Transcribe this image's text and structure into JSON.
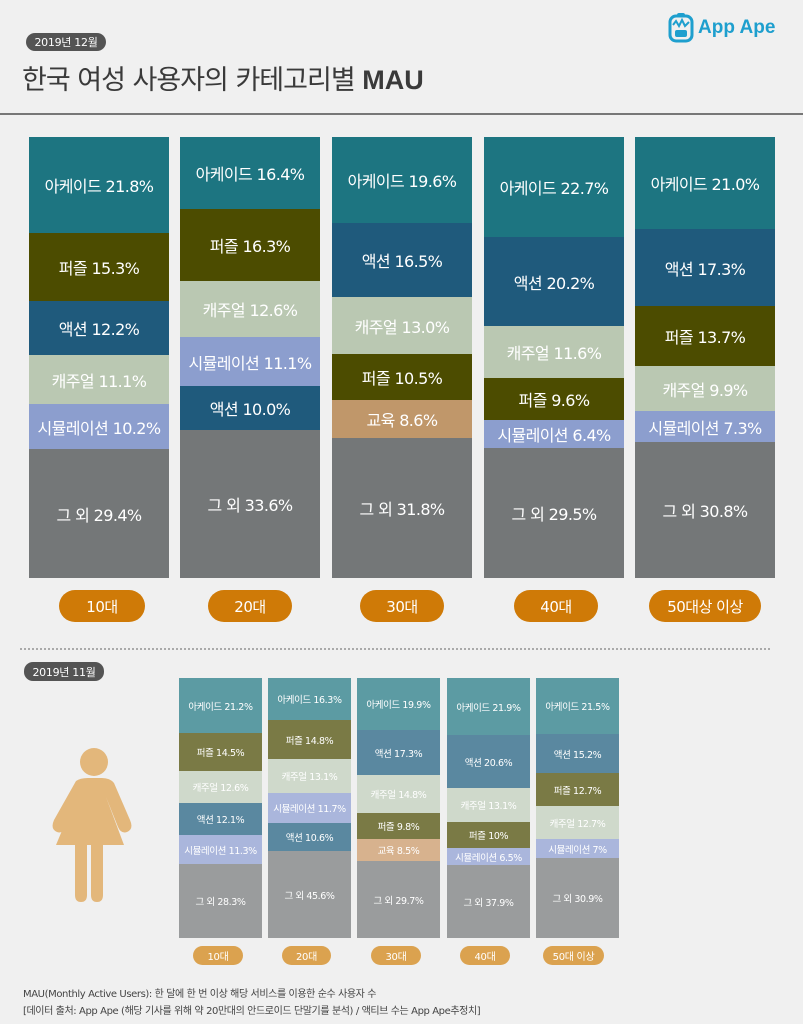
{
  "header": {
    "date_label": "2019년 12월",
    "title_korean": "한국 여성 사용자의 카테고리별",
    "title_metric": "MAU",
    "logo_text": "App Ape"
  },
  "colors": {
    "arcade": "#1d7581",
    "puzzle": "#4c4c00",
    "action": "#1f5a7c",
    "casual": "#bac8b2",
    "simulation": "#8c9ece",
    "education": "#c0976a",
    "other": "#747778",
    "arcade_light": "#5c9ba3",
    "puzzle_light": "#7a7a45",
    "action_light": "#5a88a0",
    "casual_light": "#cfd9cb",
    "simulation_light": "#aab6dc",
    "education_light": "#d7b28e",
    "other_light": "#9a9c9d",
    "age_pill": "#cf7a07",
    "age_pill_light": "#dba24f",
    "figure": "#e3b77b"
  },
  "section2": {
    "date_label": "2019년 11월"
  },
  "footer": {
    "line1": "MAU(Monthly Active Users):  한 달에 한 번 이상 해당 서비스를 이용한 순수 사용자 수",
    "line2": "[데이터 출처: App Ape (해당 기사를 위해 약 20만대의 안드로이드 단말기를 분석) / 액티브 수는 App Ape추정치]"
  },
  "chart_data": [
    {
      "type": "bar",
      "stacked": true,
      "title": "한국 여성 사용자의 카테고리별 MAU (2019년 12월)",
      "categories": [
        "10대",
        "20대",
        "30대",
        "40대",
        "50대상 이상"
      ],
      "bars": [
        {
          "age": "10대",
          "segments": [
            {
              "label": "아케이드 21.8%",
              "category": "arcade",
              "value": 21.8
            },
            {
              "label": "퍼즐 15.3%",
              "category": "puzzle",
              "value": 15.3
            },
            {
              "label": "액션 12.2%",
              "category": "action",
              "value": 12.2
            },
            {
              "label": "캐주얼 11.1%",
              "category": "casual",
              "value": 11.1
            },
            {
              "label": "시뮬레이션 10.2%",
              "category": "simulation",
              "value": 10.2
            },
            {
              "label": "그 외 29.4%",
              "category": "other",
              "value": 29.4
            }
          ]
        },
        {
          "age": "20대",
          "segments": [
            {
              "label": "아케이드 16.4%",
              "category": "arcade",
              "value": 16.4
            },
            {
              "label": "퍼즐 16.3%",
              "category": "puzzle",
              "value": 16.3
            },
            {
              "label": "캐주얼 12.6%",
              "category": "casual",
              "value": 12.6
            },
            {
              "label": "시뮬레이션 11.1%",
              "category": "simulation",
              "value": 11.1
            },
            {
              "label": "액션 10.0%",
              "category": "action",
              "value": 10.0
            },
            {
              "label": "그 외 33.6%",
              "category": "other",
              "value": 33.6
            }
          ]
        },
        {
          "age": "30대",
          "segments": [
            {
              "label": "아케이드 19.6%",
              "category": "arcade",
              "value": 19.6
            },
            {
              "label": "액션 16.5%",
              "category": "action",
              "value": 16.5
            },
            {
              "label": "캐주얼 13.0%",
              "category": "casual",
              "value": 13.0
            },
            {
              "label": "퍼즐 10.5%",
              "category": "puzzle",
              "value": 10.5
            },
            {
              "label": "교육 8.6%",
              "category": "education",
              "value": 8.6
            },
            {
              "label": "그 외 31.8%",
              "category": "other",
              "value": 31.8
            }
          ]
        },
        {
          "age": "40대",
          "segments": [
            {
              "label": "아케이드 22.7%",
              "category": "arcade",
              "value": 22.7
            },
            {
              "label": "액션 20.2%",
              "category": "action",
              "value": 20.2
            },
            {
              "label": "캐주얼 11.6%",
              "category": "casual",
              "value": 11.6
            },
            {
              "label": "퍼즐 9.6%",
              "category": "puzzle",
              "value": 9.6
            },
            {
              "label": "시뮬레이션 6.4%",
              "category": "simulation",
              "value": 6.4
            },
            {
              "label": "그 외 29.5%",
              "category": "other",
              "value": 29.5
            }
          ]
        },
        {
          "age": "50대상 이상",
          "segments": [
            {
              "label": "아케이드 21.0%",
              "category": "arcade",
              "value": 21.0
            },
            {
              "label": "액션 17.3%",
              "category": "action",
              "value": 17.3
            },
            {
              "label": "퍼즐 13.7%",
              "category": "puzzle",
              "value": 13.7
            },
            {
              "label": "캐주얼 9.9%",
              "category": "casual",
              "value": 9.9
            },
            {
              "label": "시뮬레이션 7.3%",
              "category": "simulation",
              "value": 7.3
            },
            {
              "label": "그 외 30.8%",
              "category": "other",
              "value": 30.8
            }
          ]
        }
      ]
    },
    {
      "type": "bar",
      "stacked": true,
      "title": "2019년 11월",
      "categories": [
        "10대",
        "20대",
        "30대",
        "40대",
        "50대 이상"
      ],
      "bars": [
        {
          "age": "10대",
          "segments": [
            {
              "label": "아케이드 21.2%",
              "category": "arcade",
              "value": 21.2
            },
            {
              "label": "퍼즐 14.5%",
              "category": "puzzle",
              "value": 14.5
            },
            {
              "label": "캐주얼 12.6%",
              "category": "casual",
              "value": 12.6
            },
            {
              "label": "액션 12.1%",
              "category": "action",
              "value": 12.1
            },
            {
              "label": "시뮬레이션 11.3%",
              "category": "simulation",
              "value": 11.3
            },
            {
              "label": "그 외 28.3%",
              "category": "other",
              "value": 28.3
            }
          ]
        },
        {
          "age": "20대",
          "segments": [
            {
              "label": "아케이드 16.3%",
              "category": "arcade",
              "value": 16.3
            },
            {
              "label": "퍼즐 14.8%",
              "category": "puzzle",
              "value": 14.8
            },
            {
              "label": "캐주얼 13.1%",
              "category": "casual",
              "value": 13.1
            },
            {
              "label": "시뮬레이션 11.7%",
              "category": "simulation",
              "value": 11.7
            },
            {
              "label": "액션 10.6%",
              "category": "action",
              "value": 10.6
            },
            {
              "label": "그 외 45.6%",
              "category": "other",
              "value": 45.6
            }
          ]
        },
        {
          "age": "30대",
          "segments": [
            {
              "label": "아케이드 19.9%",
              "category": "arcade",
              "value": 19.9
            },
            {
              "label": "액션 17.3%",
              "category": "action",
              "value": 17.3
            },
            {
              "label": "캐주얼 14.8%",
              "category": "casual",
              "value": 14.8
            },
            {
              "label": "퍼즐 9.8%",
              "category": "puzzle",
              "value": 9.8
            },
            {
              "label": "교육 8.5%",
              "category": "education",
              "value": 8.5
            },
            {
              "label": "그 외 29.7%",
              "category": "other",
              "value": 29.7
            }
          ]
        },
        {
          "age": "40대",
          "segments": [
            {
              "label": "아케이드 21.9%",
              "category": "arcade",
              "value": 21.9
            },
            {
              "label": "액션 20.6%",
              "category": "action",
              "value": 20.6
            },
            {
              "label": "캐주얼 13.1%",
              "category": "casual",
              "value": 13.1
            },
            {
              "label": "퍼즐 10%",
              "category": "puzzle",
              "value": 10
            },
            {
              "label": "시뮬레이션 6.5%",
              "category": "simulation",
              "value": 6.5
            },
            {
              "label": "그 외 37.9%",
              "category": "other",
              "value": 37.9
            }
          ]
        },
        {
          "age": "50대 이상",
          "segments": [
            {
              "label": "아케이드 21.5%",
              "category": "arcade",
              "value": 21.5
            },
            {
              "label": "액션 15.2%",
              "category": "action",
              "value": 15.2
            },
            {
              "label": "퍼즐 12.7%",
              "category": "puzzle",
              "value": 12.7
            },
            {
              "label": "캐주얼 12.7%",
              "category": "casual",
              "value": 12.7
            },
            {
              "label": "시뮬레이션 7%",
              "category": "simulation",
              "value": 7
            },
            {
              "label": "그 외 30.9%",
              "category": "other",
              "value": 30.9
            }
          ]
        }
      ]
    }
  ]
}
